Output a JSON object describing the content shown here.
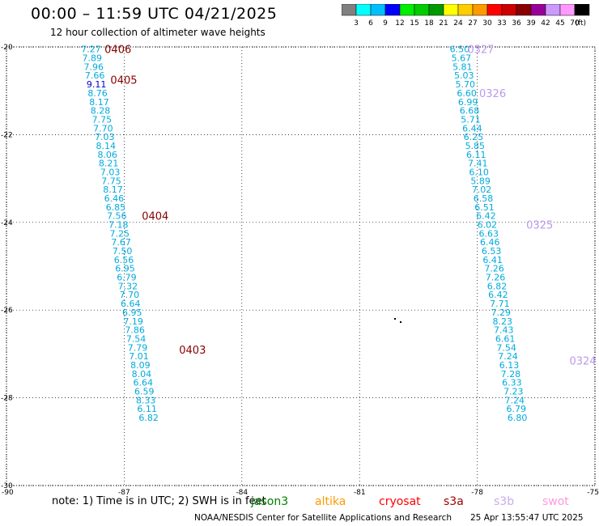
{
  "header": {
    "title": "00:00 – 11:59 UTC 04/21/2025",
    "subtitle": "12 hour collection of altimeter wave heights"
  },
  "colorbar": {
    "colors": [
      "#808080",
      "#00ffff",
      "#00bfff",
      "#0000ff",
      "#00ee00",
      "#00cc00",
      "#009900",
      "#ffff00",
      "#ffcc00",
      "#ff9900",
      "#ff0000",
      "#cc0000",
      "#880000",
      "#990099",
      "#cc99ff",
      "#ff99ff",
      "#000000"
    ],
    "labels": [
      "3",
      "6",
      "9",
      "12",
      "15",
      "18",
      "21",
      "24",
      "27",
      "30",
      "33",
      "36",
      "39",
      "42",
      "45",
      "70"
    ],
    "unit": "(ft)"
  },
  "footer": {
    "note": "note:  1) Time is in UTC;  2) SWH is in feet",
    "credit": "NOAA/NESDIS Center for Satellite Applications and Research",
    "timestamp": "25 Apr 13:55:47 UTC 2025"
  },
  "satellites": [
    {
      "name": "jason3",
      "color": "#008000"
    },
    {
      "name": "altika",
      "color": "#ff9900"
    },
    {
      "name": "cryosat",
      "color": "#ff0000"
    },
    {
      "name": "s3a",
      "color": "#990000"
    },
    {
      "name": "s3b",
      "color": "#ccaaee"
    },
    {
      "name": "swot",
      "color": "#ff99dd"
    }
  ],
  "map": {
    "lon_range": [
      -90,
      -75
    ],
    "lat_range": [
      -30,
      -20
    ],
    "lon_ticks": [
      "-90",
      "-87",
      "-84",
      "-81",
      "-78",
      "-75"
    ],
    "lat_ticks": [
      "-20",
      "-22",
      "-24",
      "-26",
      "-28",
      "-30"
    ],
    "tracks": [
      {
        "satellite": "s3a",
        "color": "#00aadd",
        "time_color": "#880000",
        "points": [
          {
            "lat": -20.05,
            "lon": -88.1,
            "v": "7.27"
          },
          {
            "lat": -20.25,
            "lon": -88.07,
            "v": "7.89"
          },
          {
            "lat": -20.45,
            "lon": -88.03,
            "v": "7.96"
          },
          {
            "lat": -20.65,
            "lon": -88.0,
            "v": "7.66"
          },
          {
            "lat": -20.85,
            "lon": -87.96,
            "v": "9.11",
            "color": "#0000cc"
          },
          {
            "lat": -21.05,
            "lon": -87.93,
            "v": "8.76"
          },
          {
            "lat": -21.25,
            "lon": -87.89,
            "v": "8.17"
          },
          {
            "lat": -21.45,
            "lon": -87.86,
            "v": "8.28"
          },
          {
            "lat": -21.65,
            "lon": -87.82,
            "v": "7.75"
          },
          {
            "lat": -21.85,
            "lon": -87.79,
            "v": "7.70"
          },
          {
            "lat": -22.05,
            "lon": -87.75,
            "v": "7.03"
          },
          {
            "lat": -22.25,
            "lon": -87.72,
            "v": "8.14"
          },
          {
            "lat": -22.45,
            "lon": -87.68,
            "v": "8.06"
          },
          {
            "lat": -22.65,
            "lon": -87.65,
            "v": "8.21"
          },
          {
            "lat": -22.85,
            "lon": -87.61,
            "v": "7.03"
          },
          {
            "lat": -23.05,
            "lon": -87.58,
            "v": "7.75"
          },
          {
            "lat": -23.25,
            "lon": -87.54,
            "v": "8.17"
          },
          {
            "lat": -23.45,
            "lon": -87.51,
            "v": "6.46"
          },
          {
            "lat": -23.65,
            "lon": -87.47,
            "v": "6.85"
          },
          {
            "lat": -23.85,
            "lon": -87.44,
            "v": "7.56"
          },
          {
            "lat": -24.05,
            "lon": -87.4,
            "v": "7.18"
          },
          {
            "lat": -24.25,
            "lon": -87.37,
            "v": "7.25"
          },
          {
            "lat": -24.45,
            "lon": -87.33,
            "v": "7.67"
          },
          {
            "lat": -24.65,
            "lon": -87.3,
            "v": "7.50"
          },
          {
            "lat": -24.85,
            "lon": -87.26,
            "v": "6.56"
          },
          {
            "lat": -25.05,
            "lon": -87.23,
            "v": "6.95"
          },
          {
            "lat": -25.25,
            "lon": -87.19,
            "v": "6.79"
          },
          {
            "lat": -25.45,
            "lon": -87.16,
            "v": "7.32"
          },
          {
            "lat": -25.65,
            "lon": -87.12,
            "v": "7.70"
          },
          {
            "lat": -25.85,
            "lon": -87.09,
            "v": "6.64"
          },
          {
            "lat": -26.05,
            "lon": -87.05,
            "v": "6.95"
          },
          {
            "lat": -26.25,
            "lon": -87.02,
            "v": "7.19"
          },
          {
            "lat": -26.45,
            "lon": -86.98,
            "v": "7.86"
          },
          {
            "lat": -26.65,
            "lon": -86.95,
            "v": "7.54"
          },
          {
            "lat": -26.85,
            "lon": -86.91,
            "v": "7.79"
          },
          {
            "lat": -27.05,
            "lon": -86.88,
            "v": "7.01"
          },
          {
            "lat": -27.25,
            "lon": -86.84,
            "v": "8.09"
          },
          {
            "lat": -27.45,
            "lon": -86.81,
            "v": "8.04"
          },
          {
            "lat": -27.65,
            "lon": -86.77,
            "v": "6.64"
          },
          {
            "lat": -27.85,
            "lon": -86.74,
            "v": "6.59"
          },
          {
            "lat": -28.05,
            "lon": -86.7,
            "v": "8.33"
          },
          {
            "lat": -28.25,
            "lon": -86.67,
            "v": "6.11"
          },
          {
            "lat": -28.45,
            "lon": -86.63,
            "v": "6.82"
          }
        ],
        "times": [
          {
            "lat": -20.05,
            "lon": -87.5,
            "t": "0406"
          },
          {
            "lat": -20.75,
            "lon": -87.35,
            "t": "0405"
          },
          {
            "lat": -23.85,
            "lon": -86.55,
            "t": "0404"
          },
          {
            "lat": -26.9,
            "lon": -85.6,
            "t": "0403"
          }
        ]
      },
      {
        "satellite": "s3b",
        "color": "#00aadd",
        "time_color": "#bb99ee",
        "points": [
          {
            "lat": -20.05,
            "lon": -78.7,
            "v": "6.50"
          },
          {
            "lat": -20.25,
            "lon": -78.66,
            "v": "5.67"
          },
          {
            "lat": -20.45,
            "lon": -78.63,
            "v": "5.81"
          },
          {
            "lat": -20.65,
            "lon": -78.59,
            "v": "5.03"
          },
          {
            "lat": -20.85,
            "lon": -78.56,
            "v": "5.70"
          },
          {
            "lat": -21.05,
            "lon": -78.52,
            "v": "6.60"
          },
          {
            "lat": -21.25,
            "lon": -78.49,
            "v": "6.99"
          },
          {
            "lat": -21.45,
            "lon": -78.45,
            "v": "6.68"
          },
          {
            "lat": -21.65,
            "lon": -78.42,
            "v": "5.71"
          },
          {
            "lat": -21.85,
            "lon": -78.38,
            "v": "6.44"
          },
          {
            "lat": -22.05,
            "lon": -78.35,
            "v": "6.25"
          },
          {
            "lat": -22.25,
            "lon": -78.31,
            "v": "5.85"
          },
          {
            "lat": -22.45,
            "lon": -78.28,
            "v": "6.11"
          },
          {
            "lat": -22.65,
            "lon": -78.24,
            "v": "7.41"
          },
          {
            "lat": -22.85,
            "lon": -78.21,
            "v": "6.10"
          },
          {
            "lat": -23.05,
            "lon": -78.17,
            "v": "5.89"
          },
          {
            "lat": -23.25,
            "lon": -78.14,
            "v": "7.02"
          },
          {
            "lat": -23.45,
            "lon": -78.1,
            "v": "6.58"
          },
          {
            "lat": -23.65,
            "lon": -78.07,
            "v": "6.51"
          },
          {
            "lat": -23.85,
            "lon": -78.03,
            "v": "6.42"
          },
          {
            "lat": -24.05,
            "lon": -78.0,
            "v": "6.02"
          },
          {
            "lat": -24.25,
            "lon": -77.96,
            "v": "6.63"
          },
          {
            "lat": -24.45,
            "lon": -77.93,
            "v": "6.46"
          },
          {
            "lat": -24.65,
            "lon": -77.89,
            "v": "6.53"
          },
          {
            "lat": -24.85,
            "lon": -77.86,
            "v": "6.41"
          },
          {
            "lat": -25.05,
            "lon": -77.82,
            "v": "7.26"
          },
          {
            "lat": -25.25,
            "lon": -77.79,
            "v": "7.26"
          },
          {
            "lat": -25.45,
            "lon": -77.75,
            "v": "6.82"
          },
          {
            "lat": -25.65,
            "lon": -77.72,
            "v": "6.42"
          },
          {
            "lat": -25.85,
            "lon": -77.68,
            "v": "7.71"
          },
          {
            "lat": -26.05,
            "lon": -77.65,
            "v": "7.29"
          },
          {
            "lat": -26.25,
            "lon": -77.61,
            "v": "8.23"
          },
          {
            "lat": -26.45,
            "lon": -77.58,
            "v": "7.43"
          },
          {
            "lat": -26.65,
            "lon": -77.54,
            "v": "6.61"
          },
          {
            "lat": -26.85,
            "lon": -77.51,
            "v": "7.54"
          },
          {
            "lat": -27.05,
            "lon": -77.47,
            "v": "7.24"
          },
          {
            "lat": -27.25,
            "lon": -77.44,
            "v": "6.13"
          },
          {
            "lat": -27.45,
            "lon": -77.4,
            "v": "7.28"
          },
          {
            "lat": -27.65,
            "lon": -77.37,
            "v": "6.33"
          },
          {
            "lat": -27.85,
            "lon": -77.33,
            "v": "7.23"
          },
          {
            "lat": -28.05,
            "lon": -77.3,
            "v": "7.24"
          },
          {
            "lat": -28.25,
            "lon": -77.26,
            "v": "6.79"
          },
          {
            "lat": -28.45,
            "lon": -77.23,
            "v": "6.80"
          }
        ],
        "times": [
          {
            "lat": -20.05,
            "lon": -78.25,
            "t": "0327"
          },
          {
            "lat": -21.05,
            "lon": -77.95,
            "t": "0326"
          },
          {
            "lat": -24.05,
            "lon": -76.75,
            "t": "0325"
          },
          {
            "lat": -27.15,
            "lon": -75.65,
            "t": "0324"
          }
        ]
      }
    ]
  }
}
